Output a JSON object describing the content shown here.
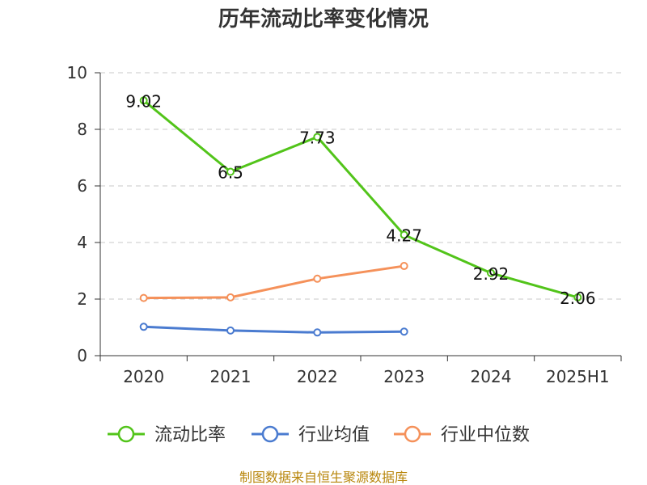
{
  "chart_data": {
    "type": "line",
    "title": "历年流动比率变化情况",
    "categories": [
      "2020",
      "2021",
      "2022",
      "2023",
      "2024",
      "2025H1"
    ],
    "ylim": [
      0,
      10
    ],
    "yticks": [
      "0",
      "2",
      "4",
      "6",
      "8",
      "10"
    ],
    "grid": true,
    "legend_position": "bottom",
    "series": [
      {
        "name": "流动比率",
        "color": "#52c41a",
        "values": [
          9.02,
          6.5,
          7.73,
          4.27,
          2.92,
          2.06
        ],
        "data_labels": [
          "9.02",
          "6.5",
          "7.73",
          "4.27",
          "2.92",
          "2.06"
        ]
      },
      {
        "name": "行业均值",
        "color": "#4a7bd0",
        "values": [
          1.02,
          0.89,
          0.82,
          0.85,
          null,
          null
        ]
      },
      {
        "name": "行业中位数",
        "color": "#f5915a",
        "values": [
          2.04,
          2.06,
          2.72,
          3.17,
          null,
          null
        ]
      }
    ]
  },
  "source": "制图数据来自恒生聚源数据库"
}
